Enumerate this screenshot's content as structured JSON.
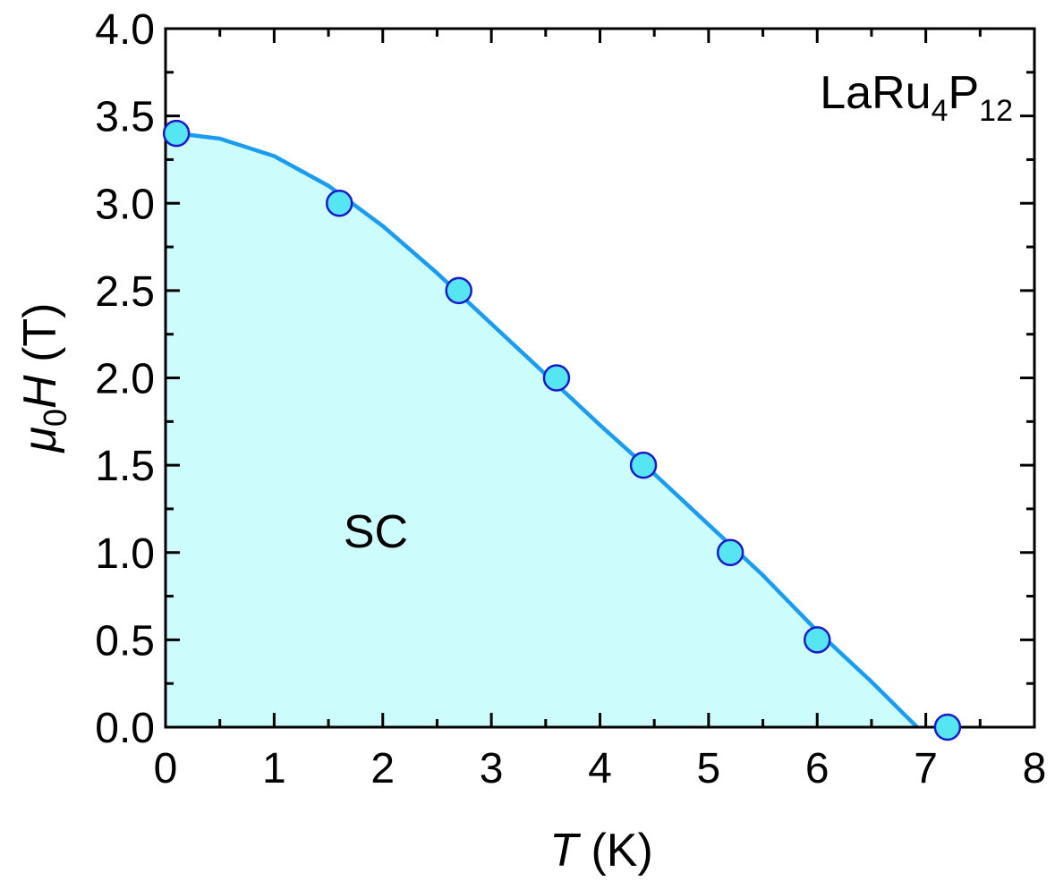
{
  "chart_data": {
    "type": "scatter",
    "title": "",
    "xlabel": {
      "symbol": "T",
      "unit": " (K)"
    },
    "ylabel": {
      "symbol_base": "μ",
      "symbol_sub": "0",
      "symbol_main": "H",
      "unit": " (T)"
    },
    "xlim": [
      0,
      8
    ],
    "ylim": [
      0,
      4.0
    ],
    "x_ticks": [
      "0",
      "1",
      "2",
      "3",
      "4",
      "5",
      "6",
      "7",
      "8"
    ],
    "y_ticks": [
      "0.0",
      "0.5",
      "1.0",
      "1.5",
      "2.0",
      "2.5",
      "3.0",
      "3.5",
      "4.0"
    ],
    "grid": false,
    "series": [
      {
        "kind": "points",
        "x": [
          0.1,
          1.6,
          2.7,
          3.6,
          4.4,
          5.2,
          6.0,
          7.2
        ],
        "y": [
          3.4,
          3.0,
          2.5,
          2.0,
          1.5,
          1.0,
          0.5,
          0.0
        ]
      },
      {
        "kind": "fit-line",
        "x": [
          0.1,
          0.5,
          1.0,
          1.5,
          2.0,
          2.5,
          3.0,
          3.5,
          4.0,
          4.5,
          5.0,
          5.5,
          6.0,
          6.5,
          6.92
        ],
        "y": [
          3.4,
          3.37,
          3.27,
          3.1,
          2.87,
          2.6,
          2.31,
          2.02,
          1.73,
          1.45,
          1.16,
          0.87,
          0.55,
          0.26,
          0.0
        ]
      }
    ],
    "annotations": {
      "region_label": "SC",
      "sample": {
        "base": "LaRu",
        "sub1": "4",
        "mid": "P",
        "sub2": "12"
      }
    },
    "colors": {
      "fill": "#ccfcfc",
      "line": "#1a9cf0",
      "marker_fill": "#55e6f2",
      "marker_edge": "#1a1ac8",
      "axes": "#000000"
    }
  }
}
